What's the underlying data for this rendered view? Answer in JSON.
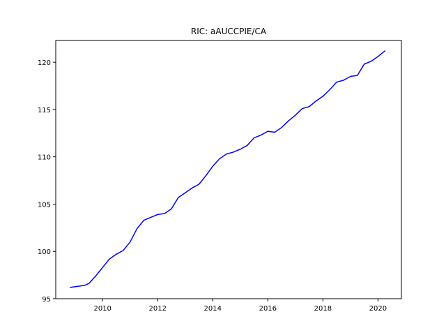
{
  "chart_data": {
    "type": "line",
    "title": "RIC: aAUCCPIE/CA",
    "xlabel": "",
    "ylabel": "",
    "xlim": [
      2008.3,
      2020.85
    ],
    "ylim": [
      95.0,
      122.3
    ],
    "x_ticks": [
      2010,
      2012,
      2014,
      2016,
      2018,
      2020
    ],
    "y_ticks": [
      95,
      100,
      105,
      110,
      115,
      120
    ],
    "grid": false,
    "legend": "none",
    "series": [
      {
        "color": "#0000ff",
        "points": [
          [
            2008.83,
            96.2
          ],
          [
            2009.08,
            96.3
          ],
          [
            2009.33,
            96.4
          ],
          [
            2009.5,
            96.6
          ],
          [
            2009.75,
            97.4
          ],
          [
            2010.0,
            98.3
          ],
          [
            2010.25,
            99.2
          ],
          [
            2010.5,
            99.7
          ],
          [
            2010.75,
            100.1
          ],
          [
            2011.0,
            101.0
          ],
          [
            2011.25,
            102.4
          ],
          [
            2011.5,
            103.3
          ],
          [
            2011.75,
            103.6
          ],
          [
            2012.0,
            103.9
          ],
          [
            2012.25,
            104.0
          ],
          [
            2012.5,
            104.5
          ],
          [
            2012.75,
            105.7
          ],
          [
            2013.0,
            106.2
          ],
          [
            2013.25,
            106.7
          ],
          [
            2013.5,
            107.1
          ],
          [
            2013.75,
            108.0
          ],
          [
            2014.0,
            109.0
          ],
          [
            2014.25,
            109.8
          ],
          [
            2014.5,
            110.3
          ],
          [
            2014.75,
            110.5
          ],
          [
            2015.0,
            110.8
          ],
          [
            2015.25,
            111.2
          ],
          [
            2015.5,
            112.0
          ],
          [
            2015.75,
            112.3
          ],
          [
            2016.0,
            112.7
          ],
          [
            2016.25,
            112.6
          ],
          [
            2016.5,
            113.1
          ],
          [
            2016.75,
            113.8
          ],
          [
            2017.0,
            114.4
          ],
          [
            2017.25,
            115.1
          ],
          [
            2017.5,
            115.3
          ],
          [
            2017.75,
            115.9
          ],
          [
            2018.0,
            116.4
          ],
          [
            2018.25,
            117.1
          ],
          [
            2018.5,
            117.9
          ],
          [
            2018.75,
            118.1
          ],
          [
            2019.0,
            118.5
          ],
          [
            2019.25,
            118.6
          ],
          [
            2019.5,
            119.8
          ],
          [
            2019.75,
            120.1
          ],
          [
            2020.0,
            120.6
          ],
          [
            2020.25,
            121.2
          ]
        ]
      }
    ]
  }
}
